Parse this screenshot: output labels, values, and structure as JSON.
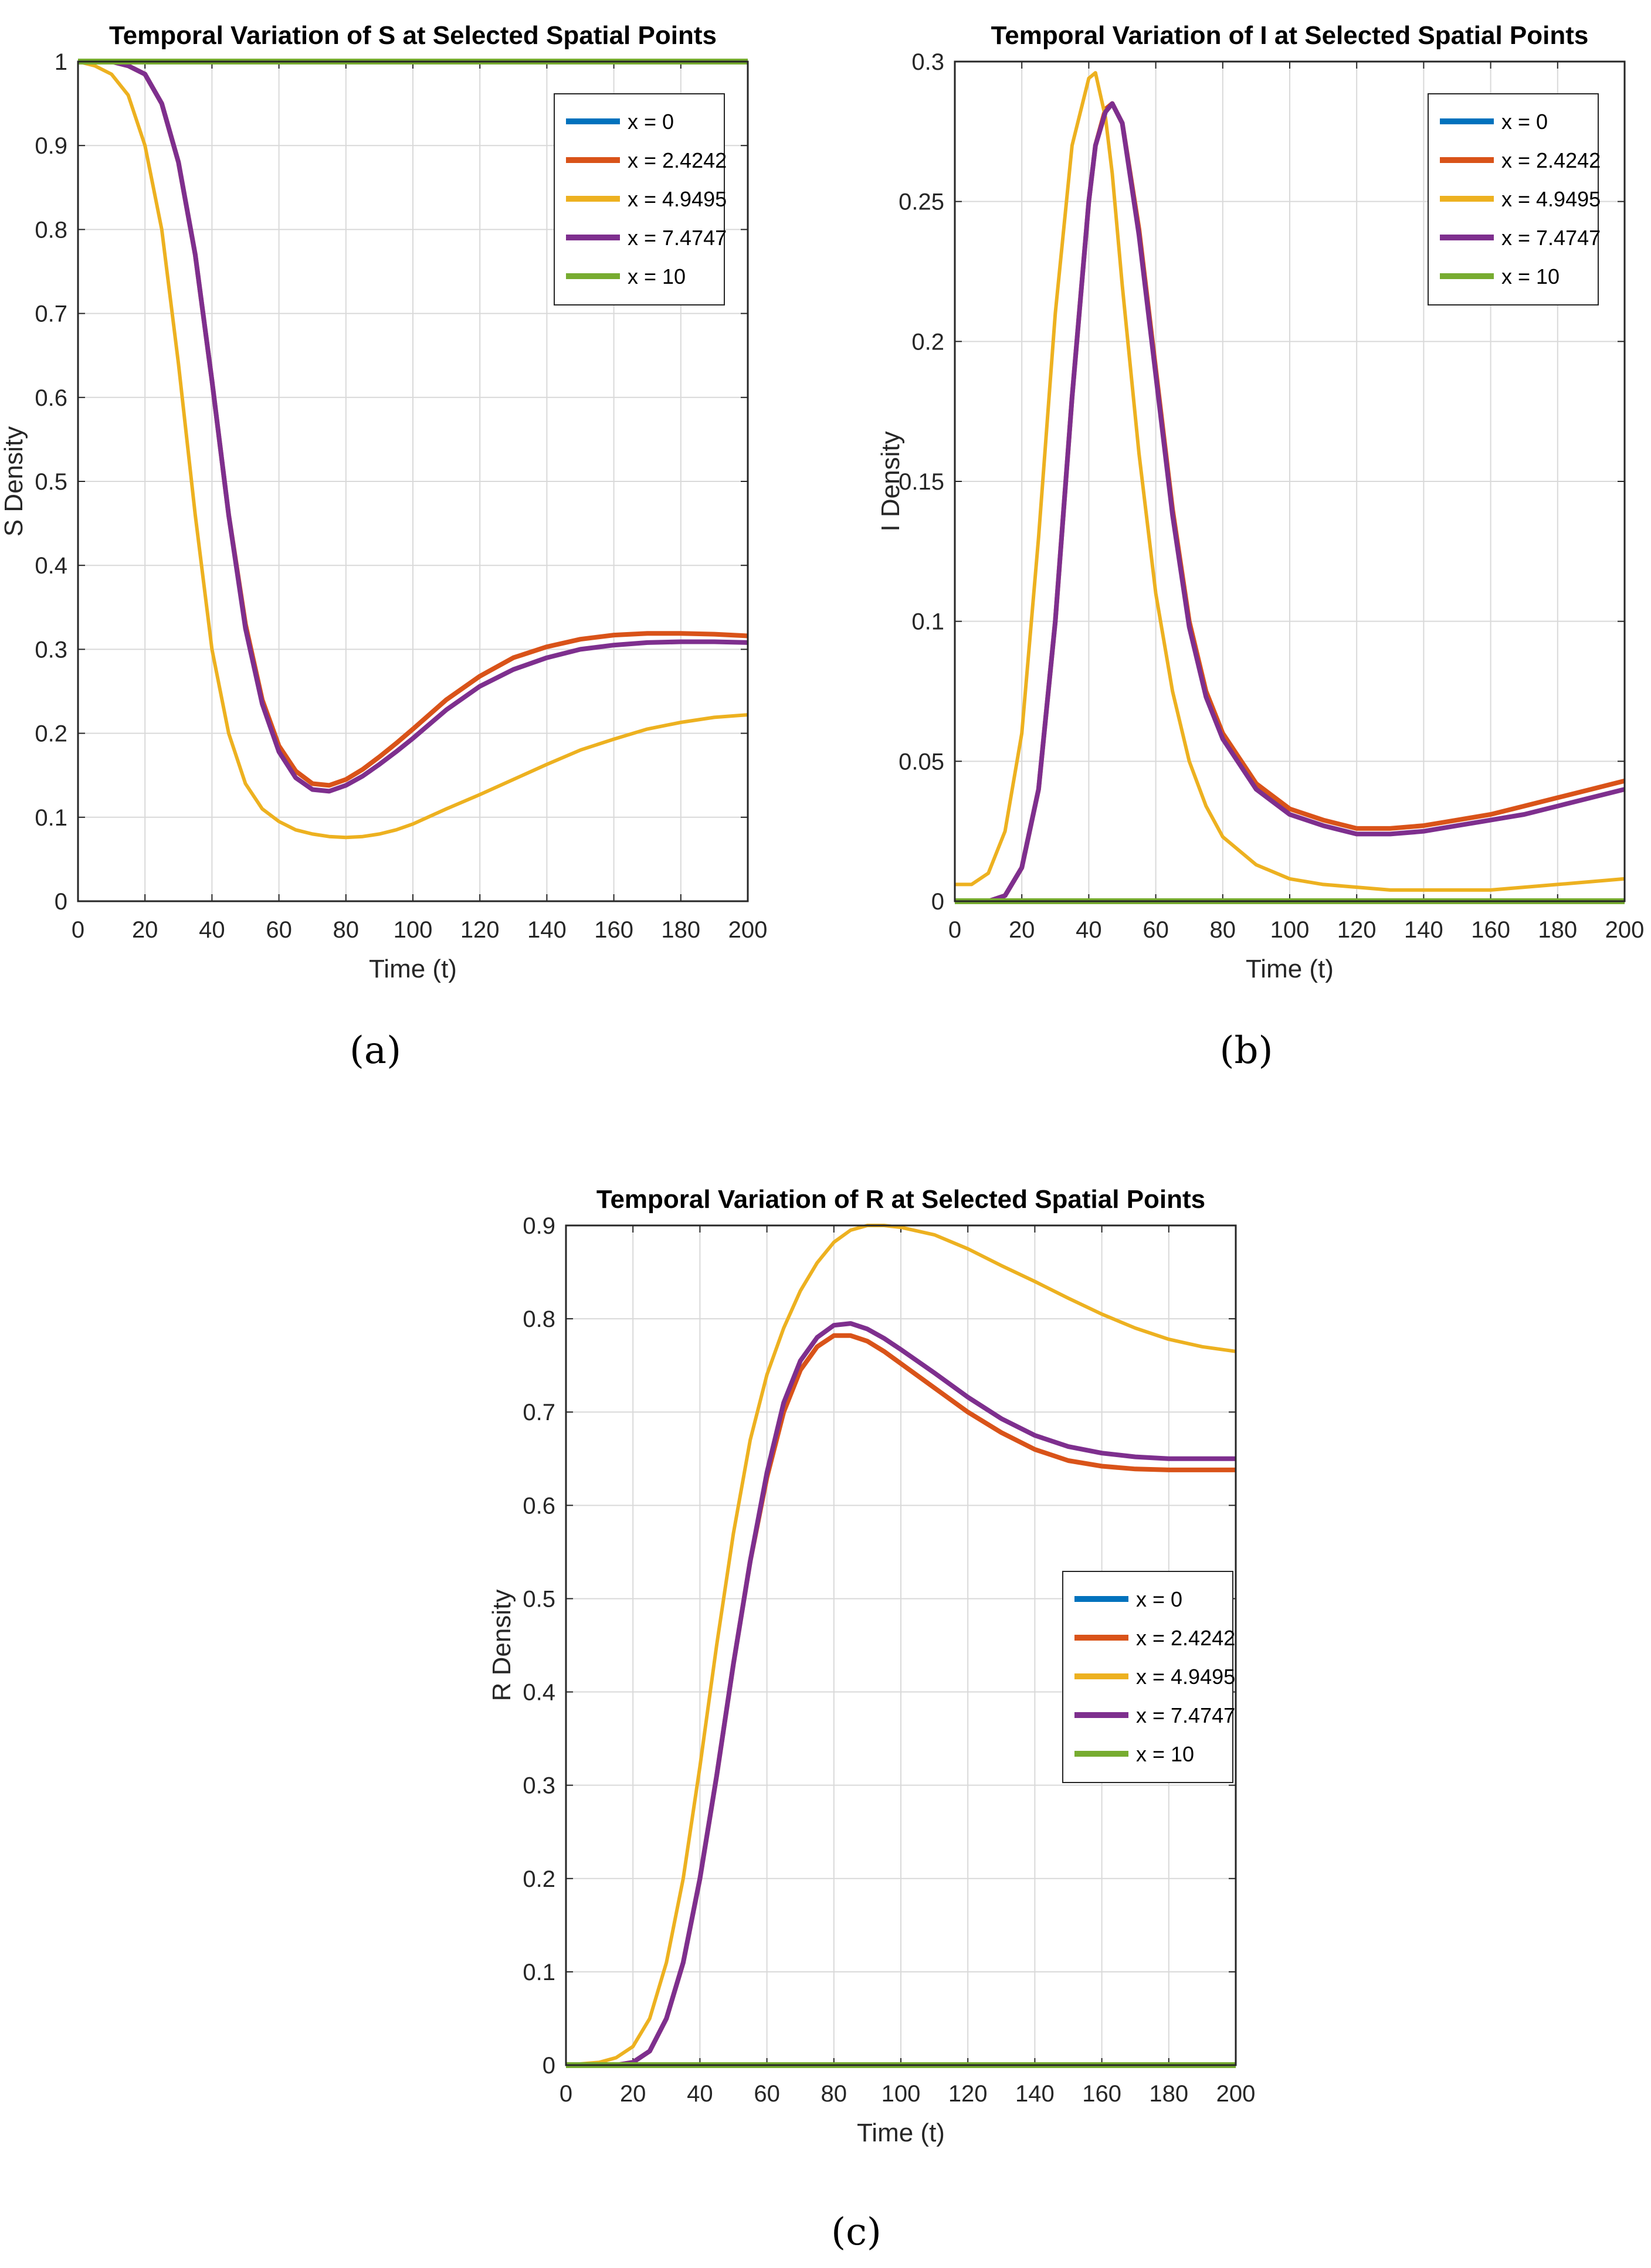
{
  "colors": {
    "x0": "#0072BD",
    "x2": "#D95319",
    "x4": "#EDB120",
    "x7": "#7E2F8E",
    "x10": "#77AC30",
    "grid": "#d9d9d9",
    "axis": "#262626"
  },
  "chart_data": [
    {
      "type": "line",
      "panel": "a",
      "caption": "(a)",
      "title": "Temporal Variation of S at Selected Spatial Points",
      "xlabel": "Time (t)",
      "ylabel": "S Density",
      "xlim": [
        0,
        200
      ],
      "ylim": [
        0,
        1
      ],
      "xticks": [
        "0",
        "20",
        "40",
        "60",
        "80",
        "100",
        "120",
        "140",
        "160",
        "180",
        "200"
      ],
      "yticks": [
        "0",
        "0.1",
        "0.2",
        "0.3",
        "0.4",
        "0.5",
        "0.6",
        "0.7",
        "0.8",
        "0.9",
        "1"
      ],
      "grid": true,
      "legend": "top-right",
      "x": [
        0,
        5,
        10,
        15,
        20,
        25,
        30,
        35,
        40,
        45,
        50,
        55,
        60,
        65,
        70,
        75,
        80,
        85,
        90,
        95,
        100,
        110,
        120,
        130,
        140,
        150,
        160,
        170,
        180,
        190,
        200
      ],
      "series": [
        {
          "name": "x = 0",
          "color_key": "x0",
          "values": [
            1,
            1,
            1,
            1,
            1,
            1,
            1,
            1,
            1,
            1,
            1,
            1,
            1,
            1,
            1,
            1,
            1,
            1,
            1,
            1,
            1,
            1,
            1,
            1,
            1,
            1,
            1,
            1,
            1,
            1,
            1
          ]
        },
        {
          "name": "x = 2.4242",
          "color_key": "x2",
          "values": [
            1,
            1,
            1,
            0.995,
            0.985,
            0.95,
            0.88,
            0.77,
            0.62,
            0.46,
            0.33,
            0.24,
            0.185,
            0.155,
            0.14,
            0.138,
            0.145,
            0.157,
            0.172,
            0.188,
            0.205,
            0.24,
            0.268,
            0.29,
            0.303,
            0.312,
            0.317,
            0.319,
            0.319,
            0.318,
            0.316
          ]
        },
        {
          "name": "x = 4.9495",
          "color_key": "x4",
          "values": [
            1,
            0.995,
            0.985,
            0.96,
            0.9,
            0.8,
            0.64,
            0.46,
            0.3,
            0.2,
            0.14,
            0.11,
            0.095,
            0.085,
            0.08,
            0.077,
            0.076,
            0.077,
            0.08,
            0.085,
            0.092,
            0.11,
            0.127,
            0.145,
            0.163,
            0.18,
            0.193,
            0.205,
            0.213,
            0.219,
            0.222
          ]
        },
        {
          "name": "x = 7.4747",
          "color_key": "x7",
          "values": [
            1,
            1,
            1,
            0.995,
            0.985,
            0.95,
            0.88,
            0.77,
            0.62,
            0.46,
            0.325,
            0.235,
            0.178,
            0.147,
            0.133,
            0.131,
            0.138,
            0.149,
            0.163,
            0.178,
            0.194,
            0.228,
            0.256,
            0.276,
            0.29,
            0.3,
            0.305,
            0.308,
            0.309,
            0.309,
            0.308
          ]
        },
        {
          "name": "x = 10",
          "color_key": "x10",
          "values": [
            1,
            1,
            1,
            1,
            1,
            1,
            1,
            1,
            1,
            1,
            1,
            1,
            1,
            1,
            1,
            1,
            1,
            1,
            1,
            1,
            1,
            1,
            1,
            1,
            1,
            1,
            1,
            1,
            1,
            1,
            1
          ]
        }
      ]
    },
    {
      "type": "line",
      "panel": "b",
      "caption": "(b)",
      "title": "Temporal Variation of I at Selected Spatial Points",
      "xlabel": "Time (t)",
      "ylabel": "I Density",
      "xlim": [
        0,
        200
      ],
      "ylim": [
        0,
        0.3
      ],
      "xticks": [
        "0",
        "20",
        "40",
        "60",
        "80",
        "100",
        "120",
        "140",
        "160",
        "180",
        "200"
      ],
      "yticks": [
        "0",
        "0.05",
        "0.1",
        "0.15",
        "0.2",
        "0.25",
        "0.3"
      ],
      "grid": true,
      "legend": "top-right",
      "x": [
        0,
        5,
        10,
        15,
        20,
        25,
        30,
        35,
        40,
        42,
        45,
        47,
        50,
        55,
        60,
        65,
        70,
        75,
        80,
        90,
        100,
        110,
        120,
        130,
        140,
        150,
        160,
        170,
        180,
        190,
        200
      ],
      "series": [
        {
          "name": "x = 0",
          "color_key": "x0",
          "values": [
            0,
            0,
            0,
            0,
            0,
            0,
            0,
            0,
            0,
            0,
            0,
            0,
            0,
            0,
            0,
            0,
            0,
            0,
            0,
            0,
            0,
            0,
            0,
            0,
            0,
            0,
            0,
            0,
            0,
            0,
            0
          ]
        },
        {
          "name": "x = 2.4242",
          "color_key": "x2",
          "values": [
            0,
            0,
            0,
            0.002,
            0.012,
            0.04,
            0.1,
            0.18,
            0.25,
            0.27,
            0.283,
            0.285,
            0.278,
            0.24,
            0.19,
            0.14,
            0.1,
            0.075,
            0.06,
            0.042,
            0.033,
            0.029,
            0.026,
            0.026,
            0.027,
            0.029,
            0.031,
            0.034,
            0.037,
            0.04,
            0.043
          ]
        },
        {
          "name": "x = 4.9495",
          "color_key": "x4",
          "values": [
            0.006,
            0.006,
            0.01,
            0.025,
            0.06,
            0.13,
            0.21,
            0.27,
            0.294,
            0.296,
            0.28,
            0.26,
            0.22,
            0.16,
            0.11,
            0.075,
            0.05,
            0.034,
            0.023,
            0.013,
            0.008,
            0.006,
            0.005,
            0.004,
            0.004,
            0.004,
            0.004,
            0.005,
            0.006,
            0.007,
            0.008
          ]
        },
        {
          "name": "x = 7.4747",
          "color_key": "x7",
          "values": [
            0,
            0,
            0,
            0.002,
            0.012,
            0.04,
            0.1,
            0.18,
            0.25,
            0.27,
            0.282,
            0.285,
            0.278,
            0.238,
            0.188,
            0.138,
            0.098,
            0.073,
            0.058,
            0.04,
            0.031,
            0.027,
            0.024,
            0.024,
            0.025,
            0.027,
            0.029,
            0.031,
            0.034,
            0.037,
            0.04
          ]
        },
        {
          "name": "x = 10",
          "color_key": "x10",
          "values": [
            0,
            0,
            0,
            0,
            0,
            0,
            0,
            0,
            0,
            0,
            0,
            0,
            0,
            0,
            0,
            0,
            0,
            0,
            0,
            0,
            0,
            0,
            0,
            0,
            0,
            0,
            0,
            0,
            0,
            0,
            0
          ]
        }
      ]
    },
    {
      "type": "line",
      "panel": "c",
      "caption": "(c)",
      "title": "Temporal Variation of R at Selected Spatial Points",
      "xlabel": "Time (t)",
      "ylabel": "R Density",
      "xlim": [
        0,
        200
      ],
      "ylim": [
        0,
        0.9
      ],
      "xticks": [
        "0",
        "20",
        "40",
        "60",
        "80",
        "100",
        "120",
        "140",
        "160",
        "180",
        "200"
      ],
      "yticks": [
        "0",
        "0.1",
        "0.2",
        "0.3",
        "0.4",
        "0.5",
        "0.6",
        "0.7",
        "0.8",
        "0.9"
      ],
      "grid": true,
      "legend": "center-right",
      "x": [
        0,
        10,
        15,
        20,
        25,
        30,
        35,
        40,
        45,
        50,
        55,
        60,
        65,
        70,
        75,
        80,
        85,
        90,
        95,
        100,
        110,
        120,
        130,
        140,
        150,
        160,
        170,
        180,
        190,
        200
      ],
      "series": [
        {
          "name": "x = 0",
          "color_key": "x0",
          "values": [
            0,
            0,
            0,
            0,
            0,
            0,
            0,
            0,
            0,
            0,
            0,
            0,
            0,
            0,
            0,
            0,
            0,
            0,
            0,
            0,
            0,
            0,
            0,
            0,
            0,
            0,
            0,
            0,
            0,
            0
          ]
        },
        {
          "name": "x = 2.4242",
          "color_key": "x2",
          "values": [
            0,
            0,
            0,
            0.003,
            0.015,
            0.05,
            0.11,
            0.2,
            0.31,
            0.43,
            0.54,
            0.63,
            0.7,
            0.745,
            0.77,
            0.782,
            0.782,
            0.776,
            0.765,
            0.752,
            0.726,
            0.7,
            0.678,
            0.66,
            0.648,
            0.642,
            0.639,
            0.638,
            0.638,
            0.638
          ]
        },
        {
          "name": "x = 4.9495",
          "color_key": "x4",
          "values": [
            0,
            0.003,
            0.008,
            0.02,
            0.05,
            0.11,
            0.2,
            0.32,
            0.45,
            0.57,
            0.67,
            0.74,
            0.79,
            0.83,
            0.86,
            0.882,
            0.895,
            0.9,
            0.9,
            0.898,
            0.89,
            0.875,
            0.857,
            0.84,
            0.822,
            0.805,
            0.79,
            0.778,
            0.77,
            0.765
          ]
        },
        {
          "name": "x = 7.4747",
          "color_key": "x7",
          "values": [
            0,
            0,
            0,
            0.003,
            0.015,
            0.05,
            0.11,
            0.2,
            0.31,
            0.43,
            0.54,
            0.635,
            0.71,
            0.755,
            0.78,
            0.793,
            0.795,
            0.789,
            0.779,
            0.767,
            0.742,
            0.716,
            0.693,
            0.675,
            0.663,
            0.656,
            0.652,
            0.65,
            0.65,
            0.65
          ]
        },
        {
          "name": "x = 10",
          "color_key": "x10",
          "values": [
            0,
            0,
            0,
            0,
            0,
            0,
            0,
            0,
            0,
            0,
            0,
            0,
            0,
            0,
            0,
            0,
            0,
            0,
            0,
            0,
            0,
            0,
            0,
            0,
            0,
            0,
            0,
            0,
            0,
            0
          ]
        }
      ]
    }
  ]
}
